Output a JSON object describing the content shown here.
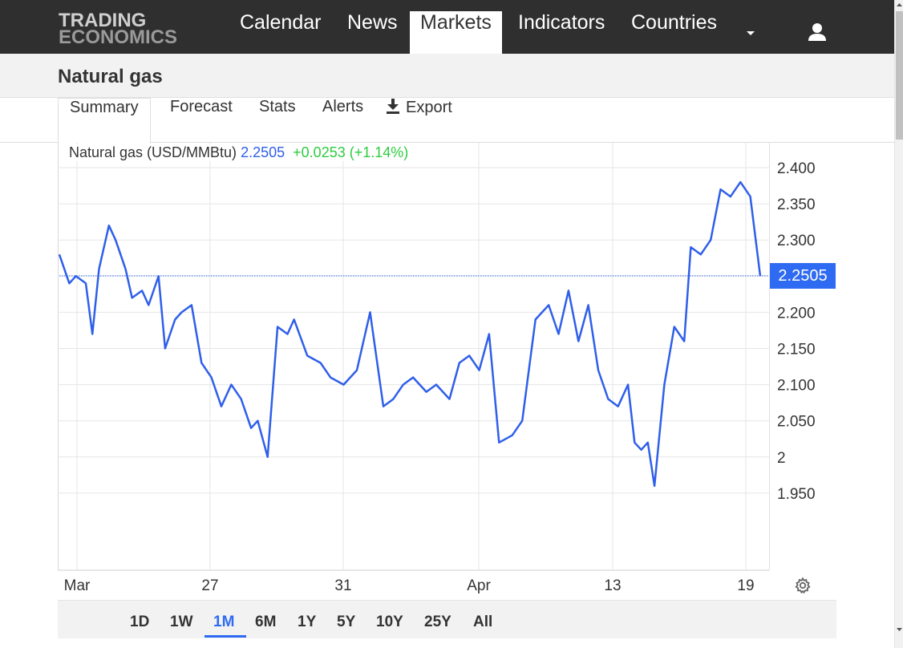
{
  "brand": {
    "line1": "TRADING",
    "line2": "ECONOMICS"
  },
  "nav": {
    "items": [
      {
        "label": "Calendar"
      },
      {
        "label": "News"
      },
      {
        "label": "Markets",
        "active": true
      },
      {
        "label": "Indicators"
      },
      {
        "label": "Countries"
      }
    ],
    "more_icon": "caret-down-icon",
    "user_icon": "user-icon"
  },
  "page": {
    "title": "Natural gas"
  },
  "tabs": [
    {
      "label": "Summary",
      "active": true
    },
    {
      "label": "Forecast"
    },
    {
      "label": "Stats"
    },
    {
      "label": "Alerts"
    },
    {
      "label": "Export",
      "icon": "download-icon"
    }
  ],
  "legend": {
    "name": "Natural gas (USD/MMBtu)",
    "value": "2.2505",
    "change": "+0.0253 (+1.14%)"
  },
  "price_tag": "2.2505",
  "colors": {
    "line": "#2f5fea",
    "accent": "#2f6bf2",
    "positive": "#2ecc40",
    "navbar": "#2f2f2f"
  },
  "chart_data": {
    "type": "line",
    "series": [
      {
        "name": "Natural gas (USD/MMBtu)",
        "x": [
          0.0,
          0.3,
          0.5,
          0.8,
          1.0,
          1.2,
          1.5,
          1.7,
          2.0,
          2.2,
          2.5,
          2.7,
          3.0,
          3.2,
          3.5,
          3.7,
          4.0,
          4.3,
          4.6,
          4.9,
          5.2,
          5.5,
          5.8,
          6.0,
          6.3,
          6.6,
          6.9,
          7.1,
          7.5,
          7.9,
          8.2,
          8.6,
          9.0,
          9.4,
          9.8,
          10.1,
          10.4,
          10.7,
          11.1,
          11.4,
          11.8,
          12.1,
          12.4,
          12.7,
          13.0,
          13.3,
          13.7,
          14.0,
          14.4,
          14.8,
          15.1,
          15.4,
          15.7,
          16.0,
          16.3,
          16.6,
          16.9,
          17.2,
          17.4,
          17.6,
          17.8,
          18.0,
          18.3,
          18.6,
          18.9,
          19.1,
          19.4,
          19.7,
          20.0,
          20.3,
          20.6,
          20.9,
          21.2
        ],
        "values": [
          2.28,
          2.24,
          2.25,
          2.24,
          2.17,
          2.26,
          2.32,
          2.3,
          2.26,
          2.22,
          2.23,
          2.21,
          2.25,
          2.15,
          2.19,
          2.2,
          2.21,
          2.13,
          2.11,
          2.07,
          2.1,
          2.08,
          2.04,
          2.05,
          2.0,
          2.18,
          2.17,
          2.19,
          2.14,
          2.13,
          2.11,
          2.1,
          2.12,
          2.2,
          2.07,
          2.08,
          2.1,
          2.11,
          2.09,
          2.1,
          2.08,
          2.13,
          2.14,
          2.12,
          2.17,
          2.02,
          2.03,
          2.05,
          2.19,
          2.21,
          2.17,
          2.23,
          2.16,
          2.21,
          2.12,
          2.08,
          2.07,
          2.1,
          2.02,
          2.01,
          2.02,
          1.96,
          2.1,
          2.18,
          2.16,
          2.29,
          2.28,
          2.3,
          2.37,
          2.36,
          2.38,
          2.36,
          2.25
        ]
      }
    ],
    "x_ticks": [
      "Mar",
      "27",
      "31",
      "Apr",
      "13",
      "19"
    ],
    "y_ticks": [
      "2.400",
      "2.350",
      "2.300",
      "2.250",
      "2.200",
      "2.150",
      "2.100",
      "2.050",
      "2",
      "1.950"
    ],
    "ylim": [
      1.9,
      2.41
    ],
    "xlim": [
      0,
      21.2
    ],
    "last_value": 2.2505,
    "grid": true
  },
  "settings_icon": "gear-icon",
  "ranges": [
    {
      "label": "1D"
    },
    {
      "label": "1W"
    },
    {
      "label": "1M",
      "active": true
    },
    {
      "label": "6M"
    },
    {
      "label": "1Y"
    },
    {
      "label": "5Y"
    },
    {
      "label": "10Y"
    },
    {
      "label": "25Y"
    },
    {
      "label": "All"
    }
  ]
}
